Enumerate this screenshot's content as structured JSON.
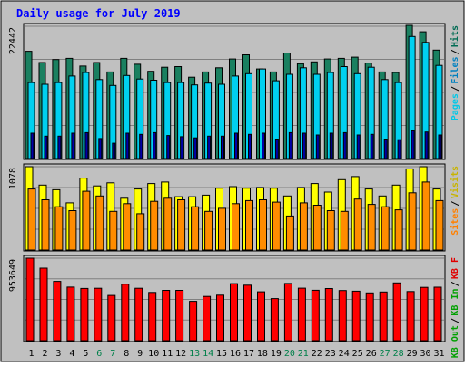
{
  "chart_data": {
    "type": "bar",
    "title": "Daily usage for July 2019",
    "categories": [
      "1",
      "2",
      "3",
      "4",
      "5",
      "6",
      "7",
      "8",
      "9",
      "10",
      "11",
      "12",
      "13",
      "14",
      "15",
      "16",
      "17",
      "18",
      "19",
      "20",
      "21",
      "22",
      "23",
      "24",
      "25",
      "26",
      "27",
      "28",
      "29",
      "30",
      "31"
    ],
    "weekend_days": [
      "6",
      "7",
      "13",
      "14",
      "20",
      "21",
      "27",
      "28"
    ],
    "panels": [
      {
        "max_label": "22442",
        "ymax": 22442,
        "legend": [
          {
            "text": "Hits",
            "color": "#006b53"
          },
          {
            "text": "Files",
            "color": "#0080c0"
          },
          {
            "text": "Pages",
            "color": "#00c8e8"
          }
        ],
        "series": [
          {
            "name": "Hits",
            "color": "#1a8060",
            "values": [
              18200,
              16300,
              16800,
              17000,
              15700,
              16300,
              14700,
              17000,
              16000,
              14800,
              15500,
              15600,
              13800,
              14700,
              15400,
              16900,
              17600,
              15200,
              14700,
              17900,
              16100,
              16400,
              16900,
              17000,
              17200,
              16200,
              14700,
              14600,
              22600,
              21500,
              18400
            ]
          },
          {
            "name": "Files",
            "color": "#00d0f0",
            "values": [
              12900,
              12600,
              12900,
              14000,
              14600,
              13400,
              12400,
              14100,
              13500,
              13300,
              12900,
              12900,
              12500,
              12800,
              12600,
              14000,
              14400,
              15200,
              13200,
              14300,
              15400,
              14300,
              14600,
              15600,
              14400,
              15500,
              13400,
              12900,
              20700,
              19700,
              15800
            ]
          },
          {
            "name": "Pages",
            "color": "#0000a8",
            "values": [
              4300,
              3800,
              3800,
              4300,
              4400,
              3400,
              2600,
              4300,
              4100,
              4400,
              3900,
              3700,
              3500,
              3800,
              3800,
              4300,
              4100,
              4300,
              3300,
              4400,
              4300,
              4000,
              4300,
              4400,
              4000,
              4100,
              3300,
              3200,
              4700,
              4500,
              4000
            ]
          }
        ]
      },
      {
        "max_label": "1078",
        "ymax": 1078,
        "legend": [
          {
            "text": "Visits",
            "color": "#c8b400"
          },
          {
            "text": "Sites",
            "color": "#ff8000"
          }
        ],
        "series": [
          {
            "name": "Visits",
            "color": "#ffff00",
            "values": [
              1078,
              840,
              780,
              610,
              930,
              830,
              870,
              670,
              790,
              860,
              880,
              690,
              690,
              710,
              800,
              820,
              800,
              810,
              800,
              700,
              810,
              860,
              750,
              910,
              950,
              790,
              700,
              840,
              1050,
              1078,
              790
            ]
          },
          {
            "name": "Sites",
            "color": "#ff8c00",
            "values": [
              790,
              650,
              560,
              510,
              760,
              700,
              500,
              600,
              470,
              630,
              670,
              650,
              560,
              500,
              540,
              600,
              640,
              650,
              620,
              440,
              610,
              580,
              510,
              500,
              660,
              590,
              560,
              520,
              740,
              880,
              640
            ]
          }
        ]
      },
      {
        "max_label": "953649",
        "ymax": 953649,
        "legend": [
          {
            "text": "KB F",
            "color": "#e00000"
          },
          {
            "text": "KB In",
            "color": "#00a000"
          },
          {
            "text": "KB Out",
            "color": "#00a000"
          }
        ],
        "series": [
          {
            "name": "KB F",
            "color": "#ff0000",
            "values": [
              953649,
              838000,
              685000,
              619000,
              604000,
              606000,
              523000,
              653000,
              606000,
              558000,
              582000,
              582000,
              455000,
              511000,
              526000,
              659000,
              641000,
              565000,
              486000,
              661000,
              607000,
              583000,
              603000,
              580000,
              572000,
              552000,
              563000,
              668000,
              568000,
              616000,
              618000
            ]
          }
        ]
      }
    ]
  }
}
